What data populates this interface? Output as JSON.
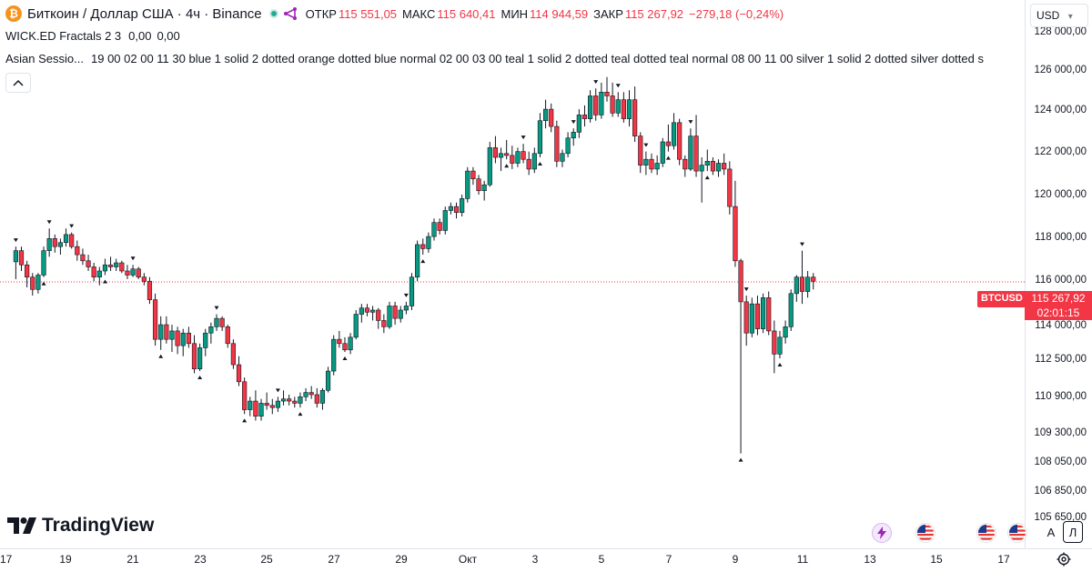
{
  "header": {
    "logo_letter": "₿",
    "symbol_title": "Биткоин / Доллар США · 4ч · Binance",
    "ohlc": {
      "open_label": "ОТКР",
      "open": "115 551,05",
      "high_label": "МАКС",
      "high": "115 640,41",
      "low_label": "МИН",
      "low": "114 944,59",
      "close_label": "ЗАКР",
      "close": "115 267,92",
      "change": "−279,18 (−0,24%)"
    }
  },
  "indicators": [
    {
      "name": "WICK.ED Fractals 2 3",
      "values": [
        "0,00",
        "0,00"
      ]
    },
    {
      "name": "Asian Sessio...",
      "params": "19 00 02 00 11 30 blue 1 solid 2 dotted orange dotted blue normal 02 00 03 00 teal 1 solid 2 dotted teal dotted teal normal 08 00 11 00 silver 1 solid 2 dotted silver dotted s"
    }
  ],
  "price_scale": {
    "currency": "USD",
    "currency_arrow": "▾",
    "labels": [
      "128 000,00",
      "126 000,00",
      "124 000,00",
      "122 000,00",
      "120 000,00",
      "118 000,00",
      "116 000,00",
      "114 000,00",
      "112 500,00",
      "110 900,00",
      "109 300,00",
      "108 050,00",
      "106 850,00",
      "105 650,00"
    ]
  },
  "current_price": {
    "symbol_tag": "BTCUSD",
    "price": "115 267,92",
    "countdown": "02:01:15"
  },
  "time_scale": {
    "labels": [
      "17",
      "19",
      "21",
      "23",
      "25",
      "27",
      "29",
      "Окт",
      "3",
      "5",
      "7",
      "9",
      "11",
      "13",
      "15",
      "17"
    ]
  },
  "branding": {
    "name": "TradingView"
  },
  "bottom_right": {
    "auto_label": "A",
    "log_label": "Л"
  },
  "colors": {
    "up": "#089981",
    "down": "#f23645",
    "price_line": "#f23645",
    "accent_live": "#22ab94"
  },
  "chart_data": {
    "type": "candlestick",
    "timeframe": "4h",
    "x_start": "2025-09-17",
    "y_scale": "log",
    "ylim": [
      105650,
      128000
    ],
    "candles": [
      [
        116250,
        117000,
        115400,
        116800
      ],
      [
        116800,
        117000,
        115800,
        116100
      ],
      [
        116100,
        116300,
        115000,
        115500
      ],
      [
        115500,
        115700,
        114600,
        114900
      ],
      [
        114900,
        115700,
        114700,
        115600
      ],
      [
        115600,
        117000,
        115500,
        116800
      ],
      [
        116800,
        117900,
        116500,
        117400
      ],
      [
        117400,
        117600,
        116700,
        117000
      ],
      [
        117000,
        117400,
        116600,
        117200
      ],
      [
        117200,
        117900,
        117000,
        117600
      ],
      [
        117600,
        117700,
        116900,
        117000
      ],
      [
        117000,
        117300,
        116300,
        116600
      ],
      [
        116600,
        116900,
        116100,
        116300
      ],
      [
        116300,
        116600,
        115800,
        116000
      ],
      [
        116000,
        116200,
        115300,
        115500
      ],
      [
        115500,
        116000,
        115100,
        115800
      ],
      [
        115800,
        116400,
        115600,
        116100
      ],
      [
        116100,
        116500,
        115800,
        116000
      ],
      [
        116000,
        116400,
        115800,
        116200
      ],
      [
        116200,
        116300,
        115700,
        115800
      ],
      [
        115800,
        116100,
        115400,
        115600
      ],
      [
        115600,
        116100,
        115500,
        115900
      ],
      [
        115900,
        116000,
        115400,
        115500
      ],
      [
        115500,
        115700,
        115100,
        115300
      ],
      [
        115300,
        115500,
        114200,
        114400
      ],
      [
        114400,
        114700,
        112200,
        112500
      ],
      [
        112500,
        113600,
        112000,
        113200
      ],
      [
        113200,
        113600,
        112300,
        112500
      ],
      [
        112500,
        113200,
        111900,
        112900
      ],
      [
        112900,
        113100,
        111800,
        112200
      ],
      [
        112200,
        113000,
        111700,
        112800
      ],
      [
        112800,
        113100,
        112100,
        112300
      ],
      [
        112300,
        112700,
        110900,
        111100
      ],
      [
        111100,
        112300,
        111000,
        112100
      ],
      [
        112100,
        113000,
        111700,
        112800
      ],
      [
        112800,
        113300,
        112300,
        113100
      ],
      [
        113100,
        113700,
        112900,
        113500
      ],
      [
        113500,
        113600,
        112900,
        113100
      ],
      [
        113100,
        113200,
        112100,
        112300
      ],
      [
        112300,
        112500,
        111100,
        111300
      ],
      [
        111300,
        111700,
        110300,
        110500
      ],
      [
        110500,
        110700,
        109000,
        109200
      ],
      [
        109200,
        109800,
        108900,
        109600
      ],
      [
        109600,
        110100,
        108700,
        108900
      ],
      [
        108900,
        109700,
        108700,
        109500
      ],
      [
        109500,
        110000,
        109200,
        109400
      ],
      [
        109400,
        109700,
        109000,
        109300
      ],
      [
        109300,
        109800,
        109100,
        109600
      ],
      [
        109600,
        110100,
        109400,
        109700
      ],
      [
        109700,
        109900,
        109400,
        109600
      ],
      [
        109600,
        109800,
        109300,
        109500
      ],
      [
        109500,
        110000,
        109300,
        109800
      ],
      [
        109800,
        110200,
        109600,
        110000
      ],
      [
        110000,
        110300,
        109700,
        109900
      ],
      [
        109900,
        110200,
        109300,
        109500
      ],
      [
        109500,
        110200,
        109200,
        110100
      ],
      [
        110100,
        111200,
        110000,
        111000
      ],
      [
        111000,
        112700,
        110800,
        112500
      ],
      [
        112500,
        112900,
        112100,
        112300
      ],
      [
        112300,
        112600,
        111900,
        112000
      ],
      [
        112000,
        112800,
        111800,
        112600
      ],
      [
        112600,
        113900,
        112500,
        113700
      ],
      [
        113700,
        114200,
        113300,
        114000
      ],
      [
        114000,
        114200,
        113600,
        113800
      ],
      [
        113800,
        114100,
        113400,
        113900
      ],
      [
        113900,
        114000,
        113000,
        113400
      ],
      [
        113400,
        113700,
        112800,
        113100
      ],
      [
        113100,
        114300,
        113000,
        114100
      ],
      [
        114100,
        114300,
        113200,
        113500
      ],
      [
        113500,
        114100,
        113300,
        113900
      ],
      [
        113900,
        114300,
        113700,
        114100
      ],
      [
        114100,
        115700,
        113900,
        115500
      ],
      [
        115500,
        117300,
        115300,
        117100
      ],
      [
        117100,
        117400,
        116600,
        116900
      ],
      [
        116900,
        117700,
        116700,
        117500
      ],
      [
        117500,
        118400,
        117300,
        118200
      ],
      [
        118200,
        118400,
        117600,
        117800
      ],
      [
        117800,
        119000,
        117600,
        118800
      ],
      [
        118800,
        119200,
        118600,
        119000
      ],
      [
        119000,
        119200,
        118400,
        118700
      ],
      [
        118700,
        119600,
        118500,
        119400
      ],
      [
        119400,
        121000,
        119200,
        120800
      ],
      [
        120800,
        121000,
        120100,
        120400
      ],
      [
        120400,
        120600,
        119600,
        119800
      ],
      [
        119800,
        120300,
        119300,
        120100
      ],
      [
        120100,
        122300,
        120000,
        122000
      ],
      [
        122000,
        122600,
        121200,
        121500
      ],
      [
        121500,
        122000,
        120800,
        121700
      ],
      [
        121700,
        122400,
        121400,
        121600
      ],
      [
        121600,
        122100,
        120900,
        121200
      ],
      [
        121200,
        122000,
        121000,
        121800
      ],
      [
        121800,
        122200,
        121200,
        121400
      ],
      [
        121400,
        121800,
        120600,
        120900
      ],
      [
        120900,
        122000,
        120700,
        121700
      ],
      [
        121700,
        123800,
        121500,
        123400
      ],
      [
        123400,
        124500,
        123000,
        124000
      ],
      [
        124000,
        124300,
        122800,
        123100
      ],
      [
        123100,
        123400,
        121000,
        121300
      ],
      [
        121300,
        121900,
        121000,
        121700
      ],
      [
        121700,
        122800,
        121500,
        122500
      ],
      [
        122500,
        123000,
        122100,
        122800
      ],
      [
        122800,
        124000,
        122500,
        123700
      ],
      [
        123700,
        124200,
        123100,
        123500
      ],
      [
        123500,
        125000,
        123300,
        124700
      ],
      [
        124700,
        125100,
        123400,
        123700
      ],
      [
        123700,
        125400,
        123500,
        124900
      ],
      [
        124900,
        125700,
        124400,
        124700
      ],
      [
        124700,
        125400,
        123600,
        123800
      ],
      [
        123800,
        124900,
        123600,
        124500
      ],
      [
        124500,
        124900,
        123300,
        123500
      ],
      [
        123500,
        125000,
        123100,
        124500
      ],
      [
        124500,
        125200,
        122300,
        122600
      ],
      [
        122600,
        122800,
        120700,
        121100
      ],
      [
        121100,
        121800,
        120600,
        121400
      ],
      [
        121400,
        121700,
        120700,
        120900
      ],
      [
        120900,
        121600,
        120600,
        121200
      ],
      [
        121200,
        122500,
        121000,
        122300
      ],
      [
        122300,
        123200,
        121800,
        122100
      ],
      [
        122100,
        123800,
        121900,
        123300
      ],
      [
        123300,
        123500,
        121100,
        121400
      ],
      [
        121400,
        121600,
        120500,
        120900
      ],
      [
        120900,
        123000,
        120800,
        122600
      ],
      [
        122600,
        123700,
        120500,
        120800
      ],
      [
        120800,
        121500,
        119200,
        121100
      ],
      [
        121100,
        121900,
        120800,
        121300
      ],
      [
        121300,
        121500,
        120600,
        120800
      ],
      [
        120800,
        121400,
        120500,
        121200
      ],
      [
        121200,
        121700,
        120600,
        120900
      ],
      [
        120900,
        121300,
        118600,
        119000
      ],
      [
        119000,
        120300,
        116000,
        116300
      ],
      [
        116300,
        116400,
        107200,
        114300
      ],
      [
        114300,
        114600,
        112200,
        112800
      ],
      [
        112800,
        114500,
        112600,
        114200
      ],
      [
        114200,
        114600,
        112700,
        113000
      ],
      [
        113000,
        114700,
        112800,
        114500
      ],
      [
        114500,
        114800,
        112700,
        112900
      ],
      [
        112900,
        113400,
        110900,
        111800
      ],
      [
        111800,
        112900,
        111600,
        112600
      ],
      [
        112600,
        113400,
        112300,
        113100
      ],
      [
        113100,
        114900,
        112900,
        114700
      ],
      [
        114700,
        115600,
        114300,
        115500
      ],
      [
        115500,
        116800,
        114200,
        114800
      ],
      [
        114800,
        115800,
        114500,
        115500
      ],
      [
        115500,
        115700,
        114900,
        115300
      ]
    ],
    "fractals": {
      "up_indices": [
        0,
        6,
        10,
        21,
        36,
        47,
        70,
        91,
        100,
        104,
        108,
        113,
        121,
        131,
        141
      ],
      "down_indices": [
        5,
        16,
        26,
        33,
        41,
        51,
        59,
        73,
        88,
        94,
        117,
        124,
        130,
        137
      ]
    },
    "current_price_line": 115267.92
  }
}
